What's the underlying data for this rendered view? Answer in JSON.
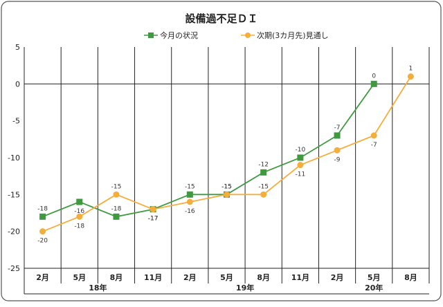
{
  "chart_data": {
    "type": "line",
    "title": "設備過不足ＤＩ",
    "categories": [
      "2月",
      "5月",
      "8月",
      "11月",
      "2月",
      "5月",
      "8月",
      "11月",
      "2月",
      "5月",
      "8月"
    ],
    "year_groups": [
      {
        "label": "18年",
        "start": 0,
        "end": 3
      },
      {
        "label": "19年",
        "start": 4,
        "end": 7
      },
      {
        "label": "20年",
        "start": 8,
        "end": 10
      }
    ],
    "series": [
      {
        "name": "今月の状況",
        "color": "#3f9a3f",
        "marker": "square",
        "values": [
          -18,
          -16,
          -18,
          -17,
          -15,
          -15,
          -12,
          -10,
          -7,
          0,
          null
        ]
      },
      {
        "name": "次期(3カ月先)見通し",
        "color": "#f5ad3c",
        "marker": "circle",
        "values": [
          -20,
          -18,
          -15,
          -17,
          -16,
          -15,
          -15,
          -11,
          -9,
          -7,
          1
        ]
      }
    ],
    "ylim": [
      -25,
      5
    ],
    "yticks": [
      5,
      0,
      -5,
      -10,
      -15,
      -20,
      -25
    ],
    "legend": "top-center",
    "grid": "vertical"
  }
}
